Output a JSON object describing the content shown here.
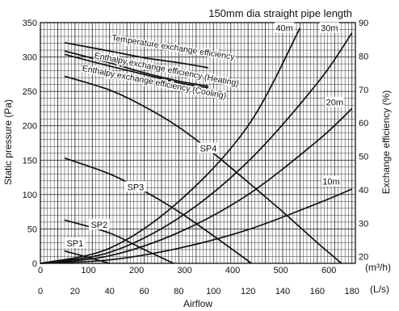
{
  "chart_data": {
    "type": "line",
    "title": "150mm dia straight pipe length",
    "xlabel": "Airflow",
    "ylabel_left": "Static pressure (Pa)",
    "ylabel_right": "Exchange efficiency (%)",
    "x_unit_m3h": "(m³/h)",
    "x_unit_ls": "(L/s)",
    "xlim_ls": [
      0,
      182
    ],
    "ylim_left": [
      0,
      350
    ],
    "ylim_right": [
      18,
      90
    ],
    "x_ticks_m3h": [
      "0",
      "100",
      "200",
      "300",
      "400",
      "500",
      "600"
    ],
    "x_ticks_ls": [
      "0",
      "20",
      "40",
      "60",
      "80",
      "100",
      "120",
      "140",
      "160",
      "180"
    ],
    "y_ticks_left": [
      "0",
      "50",
      "100",
      "150",
      "200",
      "250",
      "300",
      "350"
    ],
    "y_ticks_right": [
      "20",
      "30",
      "40",
      "50",
      "60",
      "70",
      "80",
      "90"
    ],
    "grid": true,
    "fan_curves": [
      {
        "name": "SP1",
        "x": [
          14,
          40
        ],
        "y": [
          18,
          0
        ]
      },
      {
        "name": "SP2",
        "x": [
          14,
          40,
          60,
          77
        ],
        "y": [
          63,
          44,
          20,
          0
        ]
      },
      {
        "name": "SP3",
        "x": [
          14,
          40,
          60,
          80,
          100,
          122
        ],
        "y": [
          153,
          130,
          105,
          75,
          40,
          0
        ]
      },
      {
        "name": "SP4",
        "x": [
          14,
          40,
          60,
          80,
          100,
          120,
          140,
          160,
          174
        ],
        "y": [
          272,
          252,
          228,
          198,
          160,
          118,
          75,
          30,
          0
        ]
      }
    ],
    "pipe_curves": [
      {
        "name": "10m",
        "x": [
          0,
          40,
          80,
          120,
          160,
          180
        ],
        "y": [
          0,
          5,
          22,
          49,
          87,
          108
        ]
      },
      {
        "name": "20m",
        "x": [
          0,
          40,
          80,
          120,
          160,
          180
        ],
        "y": [
          0,
          11,
          45,
          100,
          178,
          225
        ]
      },
      {
        "name": "30m",
        "x": [
          0,
          40,
          80,
          120,
          160,
          180
        ],
        "y": [
          0,
          16,
          66,
          148,
          262,
          335
        ]
      },
      {
        "name": "40m",
        "x": [
          0,
          40,
          80,
          120,
          150
        ],
        "y": [
          0,
          22,
          90,
          200,
          342
        ]
      }
    ],
    "efficiency_curves": [
      {
        "name": "Temperature exchange efficiency",
        "x": [
          14,
          40,
          60,
          80,
          97
        ],
        "y": [
          84,
          81.5,
          79.5,
          78,
          76.5
        ]
      },
      {
        "name": "Enthalpy exchange efficiency (Heating)",
        "x": [
          14,
          40,
          60,
          80,
          97
        ],
        "y": [
          81.5,
          78,
          75,
          72.5,
          71
        ]
      },
      {
        "name": "Enthalpy exchange efficiency (Cooling)",
        "x": [
          14,
          40,
          60,
          80,
          97
        ],
        "y": [
          80.5,
          77,
          74.5,
          72,
          70.5
        ]
      }
    ]
  }
}
